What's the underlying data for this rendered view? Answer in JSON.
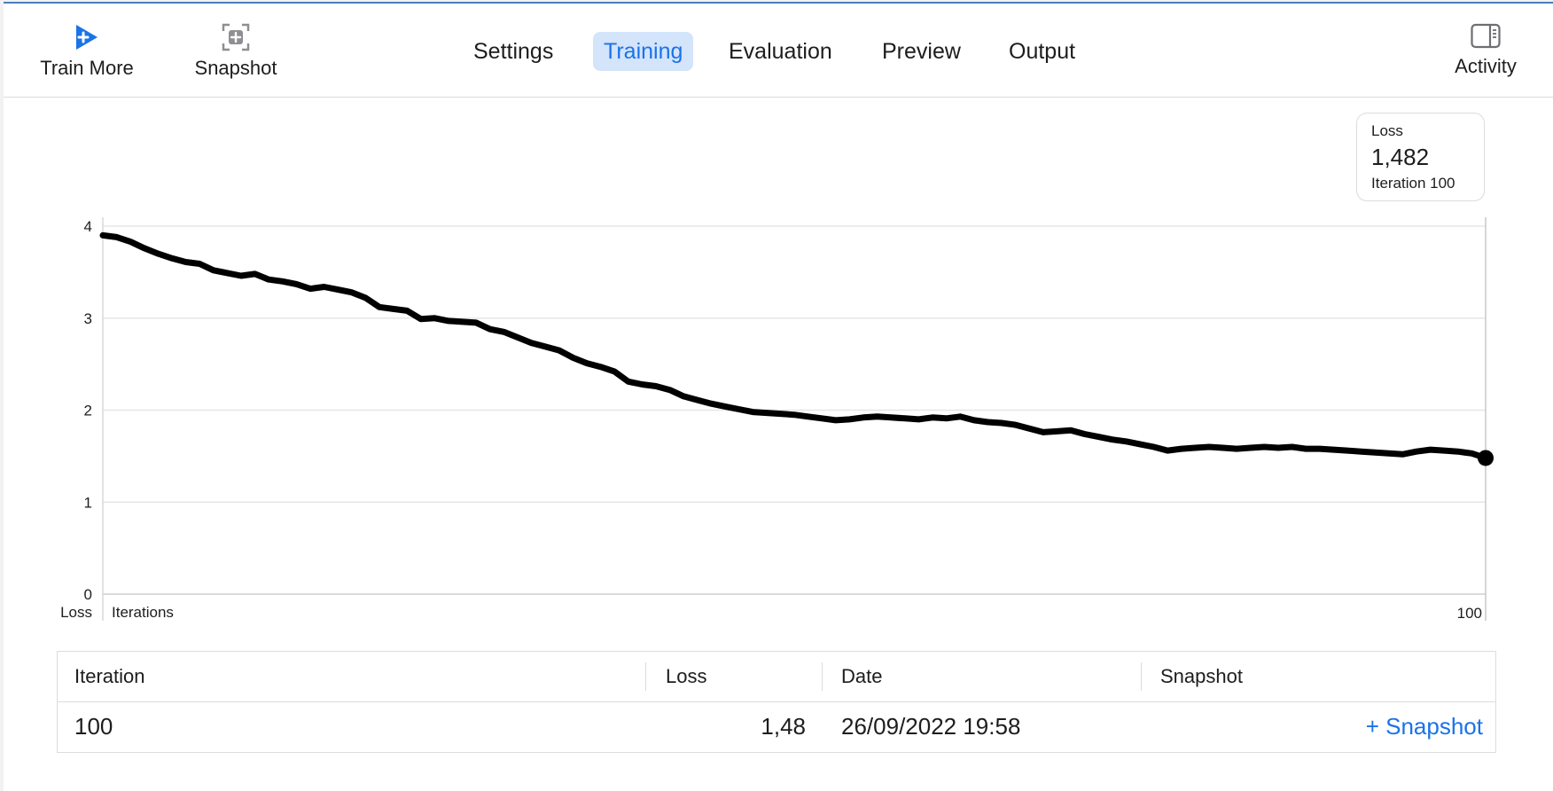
{
  "toolbar": {
    "train_more_label": "Train More",
    "snapshot_label": "Snapshot",
    "activity_label": "Activity",
    "accent_color": "#1a73e8"
  },
  "tabs": [
    {
      "label": "Settings",
      "active": false
    },
    {
      "label": "Training",
      "active": true
    },
    {
      "label": "Evaluation",
      "active": false
    },
    {
      "label": "Preview",
      "active": false
    },
    {
      "label": "Output",
      "active": false
    }
  ],
  "tooltip": {
    "label": "Loss",
    "value": "1,482",
    "iteration": "Iteration 100"
  },
  "chart_data": {
    "type": "line",
    "ylabel": "Loss",
    "xlabel": "Iterations",
    "x_end_label": "100",
    "ylim": [
      0,
      4
    ],
    "xlim": [
      0,
      100
    ],
    "yticks": [
      "0",
      "1",
      "2",
      "3",
      "4"
    ],
    "grid": true,
    "line_color": "#000000",
    "series": [
      {
        "x": [
          0,
          1,
          2,
          3,
          4,
          5,
          6,
          7,
          8,
          9,
          10,
          11,
          12,
          13,
          14,
          15,
          16,
          17,
          18,
          19,
          20,
          21,
          22,
          23,
          24,
          25,
          26,
          27,
          28,
          29,
          30,
          31,
          32,
          33,
          34,
          35,
          36,
          37,
          38,
          39,
          40,
          41,
          42,
          43,
          44,
          45,
          46,
          47,
          48,
          49,
          50,
          51,
          52,
          53,
          54,
          55,
          56,
          57,
          58,
          59,
          60,
          61,
          62,
          63,
          64,
          65,
          66,
          67,
          68,
          69,
          70,
          71,
          72,
          73,
          74,
          75,
          76,
          77,
          78,
          79,
          80,
          81,
          82,
          83,
          84,
          85,
          86,
          87,
          88,
          89,
          90,
          91,
          92,
          93,
          94,
          95,
          96,
          97,
          98,
          99,
          100
        ],
        "values": [
          3.9,
          3.88,
          3.83,
          3.76,
          3.7,
          3.65,
          3.61,
          3.59,
          3.52,
          3.49,
          3.46,
          3.48,
          3.42,
          3.4,
          3.37,
          3.32,
          3.34,
          3.31,
          3.28,
          3.22,
          3.12,
          3.1,
          3.08,
          2.99,
          3.0,
          2.97,
          2.96,
          2.95,
          2.88,
          2.85,
          2.79,
          2.73,
          2.69,
          2.65,
          2.57,
          2.51,
          2.47,
          2.42,
          2.31,
          2.28,
          2.26,
          2.22,
          2.15,
          2.11,
          2.07,
          2.04,
          2.01,
          1.98,
          1.97,
          1.96,
          1.95,
          1.93,
          1.91,
          1.89,
          1.9,
          1.92,
          1.93,
          1.92,
          1.91,
          1.9,
          1.92,
          1.91,
          1.93,
          1.89,
          1.87,
          1.86,
          1.84,
          1.8,
          1.76,
          1.77,
          1.78,
          1.74,
          1.71,
          1.68,
          1.66,
          1.63,
          1.6,
          1.56,
          1.58,
          1.59,
          1.6,
          1.59,
          1.58,
          1.59,
          1.6,
          1.59,
          1.6,
          1.58,
          1.58,
          1.57,
          1.56,
          1.55,
          1.54,
          1.53,
          1.52,
          1.55,
          1.57,
          1.56,
          1.55,
          1.53,
          1.48
        ]
      }
    ]
  },
  "table": {
    "headers": {
      "iteration": "Iteration",
      "loss": "Loss",
      "date": "Date",
      "snapshot": "Snapshot"
    },
    "rows": [
      {
        "iteration": "100",
        "loss": "1,48",
        "date": "26/09/2022 19:58",
        "snapshot_action": "+ Snapshot"
      }
    ]
  }
}
